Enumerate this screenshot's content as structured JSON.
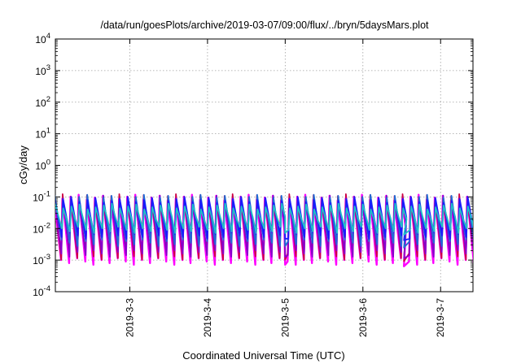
{
  "chart_data": {
    "type": "line",
    "title": "/data/run/goesPlots/archive/2019-03-07/09:00/flux/../bryn/5daysMars.plot",
    "xlabel": "Coordinated Universal Time (UTC)",
    "ylabel": "cGy/day",
    "x_scale": "time",
    "y_scale": "log",
    "xlim": [
      "2019-03-02T01:00",
      "2019-03-07T10:00"
    ],
    "ylim": [
      0.0001,
      10000
    ],
    "grid": true,
    "legend": "none",
    "x_ticks": [
      "2019-3-3",
      "2019-3-4",
      "2019-3-5",
      "2019-3-6",
      "2019-3-7"
    ],
    "y_ticks": [
      {
        "value": 0.0001,
        "base": "10",
        "exp": "-4"
      },
      {
        "value": 0.001,
        "base": "10",
        "exp": "-3"
      },
      {
        "value": 0.01,
        "base": "10",
        "exp": "-2"
      },
      {
        "value": 0.1,
        "base": "10",
        "exp": "-1"
      },
      {
        "value": 1,
        "base": "10",
        "exp": "0"
      },
      {
        "value": 10,
        "base": "10",
        "exp": "1"
      },
      {
        "value": 100,
        "base": "10",
        "exp": "2"
      },
      {
        "value": 1000,
        "base": "10",
        "exp": "3"
      },
      {
        "value": 10000,
        "base": "10",
        "exp": "4"
      }
    ],
    "sawtooth": {
      "period_hours": 2.5,
      "peak_spacing_note": "approximately 2.5 h between peaks; data gaps near 2019-03-05 00:00 and 2019-03-06 13:00"
    },
    "series": [
      {
        "color": "#ff00ff",
        "peak": 0.095,
        "trough": 0.0009
      },
      {
        "color": "#cc0044",
        "peak": 0.1,
        "trough": 0.0013
      },
      {
        "color": "#8800cc",
        "peak": 0.09,
        "trough": 0.0016
      },
      {
        "color": "#1e6bd6",
        "peak": 0.095,
        "trough": 0.0035
      },
      {
        "color": "#1a1aff",
        "peak": 0.08,
        "trough": 0.006
      },
      {
        "color": "#20c0c8",
        "peak": 0.05,
        "trough": 0.009
      }
    ]
  }
}
